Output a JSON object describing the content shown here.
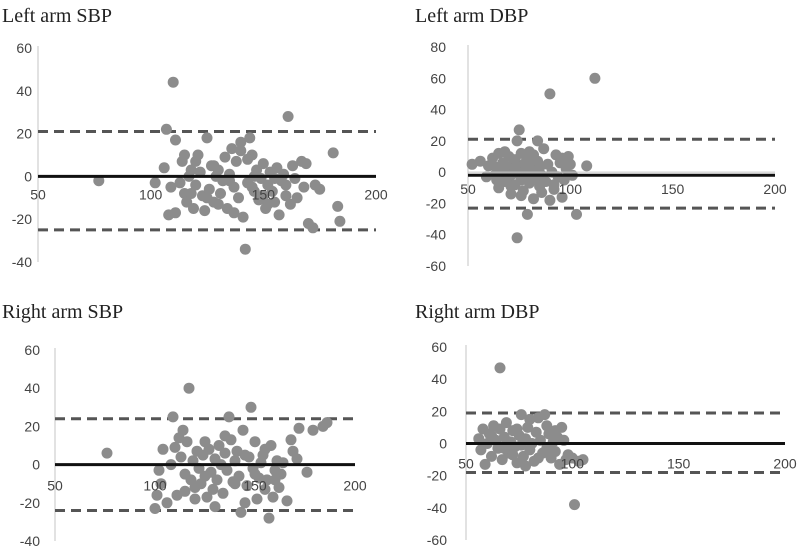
{
  "chart_data": [
    {
      "type": "scatter",
      "title": "Left arm SBP",
      "xlim": [
        50,
        200
      ],
      "ylim": [
        -40,
        60
      ],
      "xticks": [
        50,
        100,
        150,
        200
      ],
      "yticks": [
        -40,
        -20,
        0,
        20,
        40,
        60
      ],
      "mean": 0,
      "upper_loa": 21,
      "lower_loa": -25,
      "points": [
        [
          77,
          -2
        ],
        [
          102,
          -3
        ],
        [
          106,
          4
        ],
        [
          107,
          22
        ],
        [
          108,
          -18
        ],
        [
          109,
          -5
        ],
        [
          110,
          44
        ],
        [
          111,
          -17
        ],
        [
          111,
          17
        ],
        [
          113,
          -3
        ],
        [
          114,
          7
        ],
        [
          115,
          10
        ],
        [
          115,
          -8
        ],
        [
          116,
          -12
        ],
        [
          117,
          0
        ],
        [
          118,
          3
        ],
        [
          119,
          -15
        ],
        [
          120,
          -4
        ],
        [
          121,
          10
        ],
        [
          122,
          2
        ],
        [
          123,
          -9
        ],
        [
          124,
          -16
        ],
        [
          125,
          18
        ],
        [
          126,
          -6
        ],
        [
          127,
          5
        ],
        [
          128,
          -12
        ],
        [
          129,
          0
        ],
        [
          130,
          3
        ],
        [
          131,
          -8
        ],
        [
          132,
          -2
        ],
        [
          133,
          9
        ],
        [
          134,
          -15
        ],
        [
          135,
          1
        ],
        [
          136,
          13
        ],
        [
          137,
          -5
        ],
        [
          138,
          7
        ],
        [
          139,
          -10
        ],
        [
          140,
          16
        ],
        [
          141,
          -19
        ],
        [
          142,
          -34
        ],
        [
          143,
          -3
        ],
        [
          144,
          18
        ],
        [
          145,
          10
        ],
        [
          146,
          -7
        ],
        [
          147,
          3
        ],
        [
          148,
          -11
        ],
        [
          149,
          -1
        ],
        [
          150,
          6
        ],
        [
          151,
          -15
        ],
        [
          152,
          -4
        ],
        [
          153,
          2
        ],
        [
          154,
          -7
        ],
        [
          155,
          -12
        ],
        [
          156,
          4
        ],
        [
          157,
          -18
        ],
        [
          158,
          -2
        ],
        [
          159,
          1
        ],
        [
          160,
          -9
        ],
        [
          161,
          28
        ],
        [
          162,
          -13
        ],
        [
          163,
          5
        ],
        [
          164,
          -1
        ],
        [
          165,
          -10
        ],
        [
          167,
          7
        ],
        [
          168,
          -5
        ],
        [
          169,
          6
        ],
        [
          170,
          -22
        ],
        [
          172,
          -24
        ],
        [
          173,
          -4
        ],
        [
          175,
          -6
        ],
        [
          181,
          11
        ],
        [
          183,
          -14
        ],
        [
          184,
          -21
        ],
        [
          140,
          12
        ],
        [
          135,
          -2
        ],
        [
          125,
          -10
        ],
        [
          120,
          7
        ],
        [
          130,
          -13
        ],
        [
          145,
          -5
        ],
        [
          150,
          -9
        ],
        [
          155,
          -1
        ],
        [
          118,
          -8
        ],
        [
          143,
          8
        ],
        [
          128,
          5
        ],
        [
          137,
          -17
        ],
        [
          146,
          0
        ],
        [
          152,
          -13
        ],
        [
          160,
          -4
        ]
      ]
    },
    {
      "type": "scatter",
      "title": "Left arm DBP",
      "xlim": [
        50,
        200
      ],
      "ylim": [
        -60,
        80
      ],
      "xticks": [
        50,
        100,
        150,
        200
      ],
      "yticks": [
        -60,
        -40,
        -20,
        0,
        20,
        40,
        60,
        80
      ],
      "mean": -2,
      "upper_loa": 21,
      "lower_loa": -23,
      "points": [
        [
          52,
          5
        ],
        [
          56,
          7
        ],
        [
          59,
          -3
        ],
        [
          60,
          4
        ],
        [
          62,
          9
        ],
        [
          63,
          -2
        ],
        [
          64,
          3
        ],
        [
          65,
          12
        ],
        [
          65,
          -10
        ],
        [
          66,
          0
        ],
        [
          67,
          6
        ],
        [
          68,
          -6
        ],
        [
          69,
          2
        ],
        [
          70,
          10
        ],
        [
          70,
          -4
        ],
        [
          71,
          -14
        ],
        [
          72,
          5
        ],
        [
          72,
          -1
        ],
        [
          73,
          8
        ],
        [
          73,
          -8
        ],
        [
          74,
          20
        ],
        [
          74,
          -42
        ],
        [
          75,
          27
        ],
        [
          75,
          3
        ],
        [
          76,
          -5
        ],
        [
          76,
          12
        ],
        [
          77,
          0
        ],
        [
          77,
          -12
        ],
        [
          78,
          6
        ],
        [
          78,
          -3
        ],
        [
          79,
          -27
        ],
        [
          79,
          2
        ],
        [
          80,
          9
        ],
        [
          80,
          -7
        ],
        [
          81,
          -1
        ],
        [
          81,
          4
        ],
        [
          82,
          -17
        ],
        [
          82,
          11
        ],
        [
          83,
          -4
        ],
        [
          83,
          1
        ],
        [
          84,
          7
        ],
        [
          84,
          20
        ],
        [
          85,
          -9
        ],
        [
          85,
          3
        ],
        [
          86,
          -2
        ],
        [
          87,
          15
        ],
        [
          88,
          -6
        ],
        [
          89,
          5
        ],
        [
          90,
          50
        ],
        [
          90,
          -18
        ],
        [
          91,
          0
        ],
        [
          92,
          -11
        ],
        [
          93,
          11
        ],
        [
          94,
          -3
        ],
        [
          95,
          6
        ],
        [
          96,
          9
        ],
        [
          97,
          -5
        ],
        [
          98,
          2
        ],
        [
          99,
          10
        ],
        [
          100,
          5
        ],
        [
          101,
          -2
        ],
        [
          103,
          -27
        ],
        [
          108,
          4
        ],
        [
          112,
          60
        ],
        [
          64,
          -5
        ],
        [
          68,
          13
        ],
        [
          71,
          -9
        ],
        [
          76,
          -15
        ],
        [
          80,
          13
        ],
        [
          86,
          -13
        ],
        [
          92,
          -8
        ],
        [
          96,
          -16
        ]
      ]
    },
    {
      "type": "scatter",
      "title": "Right arm SBP",
      "xlim": [
        50,
        200
      ],
      "ylim": [
        -40,
        60
      ],
      "xticks": [
        50,
        100,
        150,
        200
      ],
      "yticks": [
        -40,
        -20,
        0,
        20,
        40,
        60
      ],
      "mean": 0,
      "upper_loa": 24,
      "lower_loa": -24,
      "points": [
        [
          76,
          6
        ],
        [
          100,
          -23
        ],
        [
          101,
          -16
        ],
        [
          102,
          -3
        ],
        [
          103,
          -10
        ],
        [
          104,
          8
        ],
        [
          106,
          -20
        ],
        [
          108,
          0
        ],
        [
          109,
          25
        ],
        [
          110,
          9
        ],
        [
          111,
          -16
        ],
        [
          112,
          14
        ],
        [
          113,
          4
        ],
        [
          114,
          18
        ],
        [
          115,
          -5
        ],
        [
          116,
          12
        ],
        [
          117,
          40
        ],
        [
          118,
          -8
        ],
        [
          119,
          2
        ],
        [
          120,
          -12
        ],
        [
          121,
          7
        ],
        [
          122,
          -2
        ],
        [
          123,
          -10
        ],
        [
          124,
          5
        ],
        [
          125,
          -6
        ],
        [
          126,
          -17
        ],
        [
          127,
          8
        ],
        [
          128,
          -4
        ],
        [
          129,
          -13
        ],
        [
          130,
          3
        ],
        [
          131,
          -8
        ],
        [
          132,
          10
        ],
        [
          133,
          0
        ],
        [
          134,
          -15
        ],
        [
          135,
          6
        ],
        [
          136,
          -3
        ],
        [
          137,
          25
        ],
        [
          138,
          13
        ],
        [
          139,
          -9
        ],
        [
          140,
          2
        ],
        [
          141,
          7
        ],
        [
          142,
          -6
        ],
        [
          143,
          -25
        ],
        [
          144,
          18
        ],
        [
          145,
          -20
        ],
        [
          146,
          -11
        ],
        [
          147,
          4
        ],
        [
          148,
          30
        ],
        [
          149,
          -2
        ],
        [
          150,
          12
        ],
        [
          151,
          -18
        ],
        [
          152,
          -7
        ],
        [
          153,
          1
        ],
        [
          154,
          5
        ],
        [
          155,
          -13
        ],
        [
          156,
          -8
        ],
        [
          157,
          -28
        ],
        [
          158,
          10
        ],
        [
          159,
          -17
        ],
        [
          160,
          -3
        ],
        [
          161,
          2
        ],
        [
          162,
          -12
        ],
        [
          163,
          -5
        ],
        [
          164,
          1
        ],
        [
          166,
          -19
        ],
        [
          168,
          13
        ],
        [
          169,
          7
        ],
        [
          171,
          3
        ],
        [
          172,
          19
        ],
        [
          176,
          -4
        ],
        [
          179,
          18
        ],
        [
          184,
          20
        ],
        [
          186,
          22
        ],
        [
          125,
          12
        ],
        [
          130,
          -22
        ],
        [
          140,
          -10
        ],
        [
          145,
          5
        ],
        [
          150,
          -5
        ],
        [
          135,
          15
        ],
        [
          120,
          -18
        ],
        [
          155,
          8
        ],
        [
          160,
          -8
        ],
        [
          115,
          -14
        ]
      ]
    },
    {
      "type": "scatter",
      "title": "Right arm DBP",
      "xlim": [
        50,
        200
      ],
      "ylim": [
        -60,
        60
      ],
      "xticks": [
        50,
        100,
        150,
        200
      ],
      "yticks": [
        -60,
        -40,
        -20,
        0,
        20,
        40,
        60
      ],
      "mean": 0,
      "upper_loa": 19,
      "lower_loa": -18,
      "points": [
        [
          56,
          3
        ],
        [
          57,
          -4
        ],
        [
          58,
          9
        ],
        [
          59,
          -13
        ],
        [
          60,
          0
        ],
        [
          61,
          6
        ],
        [
          62,
          -8
        ],
        [
          63,
          11
        ],
        [
          64,
          2
        ],
        [
          65,
          -3
        ],
        [
          66,
          47
        ],
        [
          67,
          -10
        ],
        [
          68,
          4
        ],
        [
          69,
          13
        ],
        [
          70,
          -6
        ],
        [
          71,
          1
        ],
        [
          72,
          8
        ],
        [
          73,
          -2
        ],
        [
          74,
          -12
        ],
        [
          75,
          5
        ],
        [
          76,
          18
        ],
        [
          77,
          -8
        ],
        [
          78,
          3
        ],
        [
          79,
          10
        ],
        [
          80,
          -4
        ],
        [
          81,
          0
        ],
        [
          82,
          -11
        ],
        [
          83,
          7
        ],
        [
          84,
          16
        ],
        [
          85,
          2
        ],
        [
          86,
          -6
        ],
        [
          87,
          18
        ],
        [
          88,
          -3
        ],
        [
          89,
          6
        ],
        [
          90,
          -9
        ],
        [
          91,
          1
        ],
        [
          92,
          -5
        ],
        [
          93,
          4
        ],
        [
          94,
          -13
        ],
        [
          95,
          10
        ],
        [
          96,
          2
        ],
        [
          97,
          -10
        ],
        [
          98,
          -7
        ],
        [
          100,
          -9
        ],
        [
          101,
          -38
        ],
        [
          103,
          -11
        ],
        [
          105,
          -10
        ],
        [
          62,
          5
        ],
        [
          68,
          -3
        ],
        [
          74,
          9
        ],
        [
          78,
          -14
        ],
        [
          84,
          -9
        ],
        [
          88,
          11
        ],
        [
          72,
          -7
        ],
        [
          80,
          15
        ],
        [
          92,
          8
        ],
        [
          66,
          9
        ],
        [
          76,
          -1
        ]
      ]
    }
  ]
}
